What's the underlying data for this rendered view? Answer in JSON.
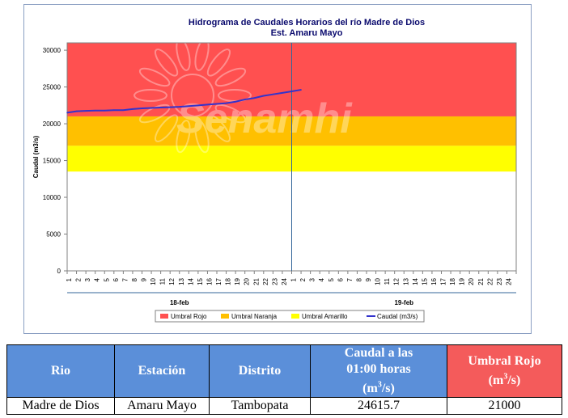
{
  "chart_data": {
    "type": "area",
    "title": "Hidrograma de Caudales Horarios del río Madre de Dios",
    "subtitle": "Est. Amaru Mayo",
    "ylabel": "Caudal  (m3/s)",
    "ylim": [
      0,
      31000
    ],
    "yticks": [
      0,
      5000,
      10000,
      15000,
      20000,
      25000,
      30000
    ],
    "xticks": [
      "1",
      "2",
      "3",
      "4",
      "5",
      "6",
      "7",
      "8",
      "9",
      "10",
      "11",
      "12",
      "13",
      "14",
      "15",
      "16",
      "17",
      "18",
      "19",
      "20",
      "21",
      "22",
      "23",
      "24",
      "1",
      "2",
      "3",
      "4",
      "5",
      "6",
      "7",
      "8",
      "9",
      "10",
      "11",
      "12",
      "13",
      "14",
      "15",
      "16",
      "17",
      "18",
      "19",
      "20",
      "21",
      "22",
      "23",
      "24"
    ],
    "days": [
      "18-feb",
      "19-feb"
    ],
    "bands": [
      {
        "name": "Umbral Rojo",
        "from": 21000,
        "to": 31000,
        "color": "#ff5050"
      },
      {
        "name": "Umbral Naranja",
        "from": 17000,
        "to": 21000,
        "color": "#ffc000"
      },
      {
        "name": "Umbral Amarillo",
        "from": 13500,
        "to": 17000,
        "color": "#ffff00"
      }
    ],
    "series": [
      {
        "name": "Caudal (m3/s)",
        "color": "#3333cc",
        "x": [
          0,
          1,
          2,
          3,
          4,
          5,
          6,
          7,
          8,
          9,
          10,
          11,
          12,
          13,
          14,
          15,
          16,
          17,
          18,
          19,
          20,
          21,
          22,
          23,
          24,
          25
        ],
        "values": [
          21500,
          21700,
          21750,
          21800,
          21800,
          21850,
          21850,
          22000,
          22100,
          22150,
          22200,
          22250,
          22300,
          22400,
          22500,
          22600,
          22700,
          22800,
          23000,
          23300,
          23500,
          23800,
          24000,
          24200,
          24400,
          24615.7
        ]
      }
    ],
    "legend": [
      "Umbral Rojo",
      "Umbral Naranja",
      "Umbral Amarillo",
      "Caudal (m3/s)"
    ],
    "legend_position": "bottom",
    "watermark": "Senamhi"
  },
  "table": {
    "headers": [
      "Rio",
      "Estación",
      "Distrito",
      "Caudal a las 01:00 horas",
      "Umbral Rojo"
    ],
    "unit_base": "(m",
    "unit_exp": "3",
    "unit_end": "/s)",
    "row": [
      "Madre de Dios",
      "Amaru Mayo",
      "Tambopata",
      "24615.7",
      "21000"
    ]
  }
}
